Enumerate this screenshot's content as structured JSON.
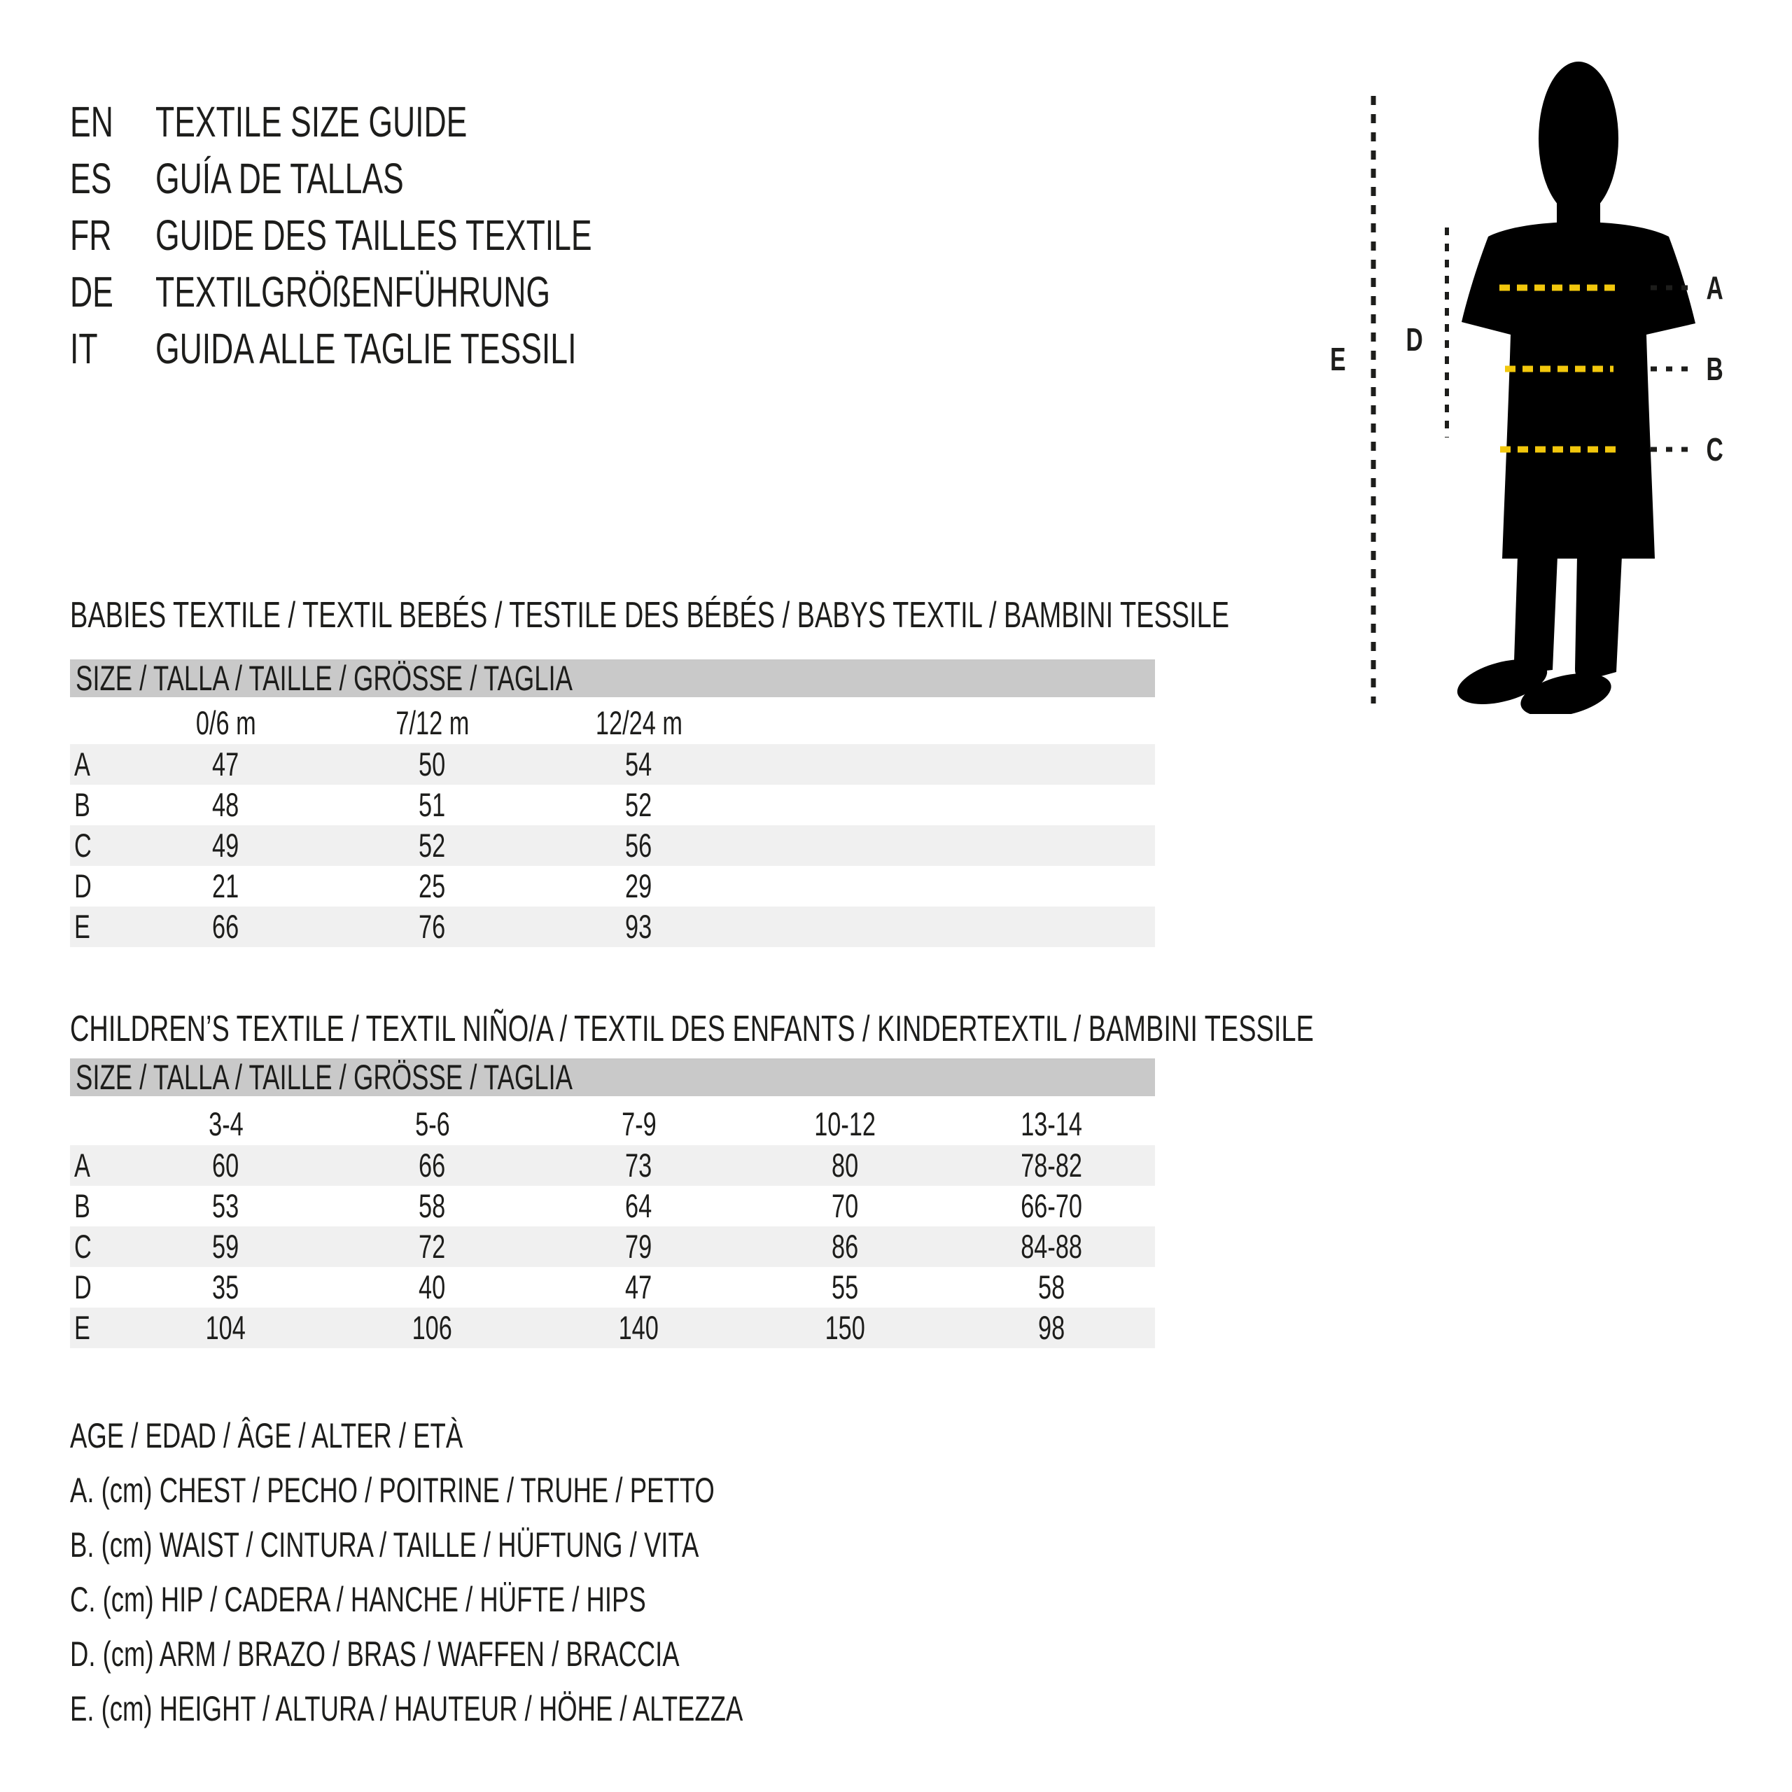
{
  "header": {
    "languages": [
      {
        "code": "EN",
        "title": "TEXTILE SIZE GUIDE"
      },
      {
        "code": "ES",
        "title": "GUÍA DE TALLAS"
      },
      {
        "code": "FR",
        "title": "GUIDE DES TAILLES TEXTILE"
      },
      {
        "code": "DE",
        "title": "TEXTILGRÖßENFÜHRUNG"
      },
      {
        "code": "IT",
        "title": "GUIDA ALLE TAGLIE TESSILI"
      }
    ]
  },
  "figure": {
    "labels": {
      "a": "A",
      "b": "B",
      "c": "C",
      "d": "D",
      "e": "E"
    },
    "silhouette_color": "#000000",
    "measure_line_color": "#f2c70c",
    "guide_line_color": "#1d1d1b"
  },
  "tables": [
    {
      "id": "babies",
      "title": "BABIES TEXTILE / TEXTIL BEBÉS / TESTILE DES BÉBÉS / BABYS TEXTIL / BAMBINI TESSILE",
      "size_header": "SIZE / TALLA / TAILLE / GRÖSSE / TAGLIA",
      "columns": [
        "0/6 m",
        "7/12 m",
        "12/24 m"
      ],
      "rows": [
        {
          "label": "A",
          "values": [
            "47",
            "50",
            "54"
          ]
        },
        {
          "label": "B",
          "values": [
            "48",
            "51",
            "52"
          ]
        },
        {
          "label": "C",
          "values": [
            "49",
            "52",
            "56"
          ]
        },
        {
          "label": "D",
          "values": [
            "21",
            "25",
            "29"
          ]
        },
        {
          "label": "E",
          "values": [
            "66",
            "76",
            "93"
          ]
        }
      ]
    },
    {
      "id": "children",
      "title": "CHILDREN’S TEXTILE / TEXTIL NIÑO/A / TEXTIL DES ENFANTS / KINDERTEXTIL / BAMBINI TESSILE",
      "size_header": "SIZE / TALLA / TAILLE / GRÖSSE / TAGLIA",
      "columns": [
        "3-4",
        "5-6",
        "7-9",
        "10-12",
        "13-14"
      ],
      "rows": [
        {
          "label": "A",
          "values": [
            "60",
            "66",
            "73",
            "80",
            "78-82"
          ]
        },
        {
          "label": "B",
          "values": [
            "53",
            "58",
            "64",
            "70",
            "66-70"
          ]
        },
        {
          "label": "C",
          "values": [
            "59",
            "72",
            "79",
            "86",
            "84-88"
          ]
        },
        {
          "label": "D",
          "values": [
            "35",
            "40",
            "47",
            "55",
            "58"
          ]
        },
        {
          "label": "E",
          "values": [
            "104",
            "106",
            "140",
            "150",
            "98"
          ]
        }
      ]
    }
  ],
  "legend": {
    "lines": [
      "AGE / EDAD / ÂGE / ALTER / ETÀ",
      "A. (cm) CHEST / PECHO / POITRINE / TRUHE / PETTO",
      "B. (cm) WAIST / CINTURA / TAILLE / HÜFTUNG / VITA",
      "C. (cm) HIP / CADERA / HANCHE / HÜFTE / HIPS",
      "D. (cm) ARM / BRAZO / BRAS / WAFFEN / BRACCIA",
      "E. (cm) HEIGHT / ALTURA / HAUTEUR / HÖHE / ALTEZZA"
    ]
  }
}
